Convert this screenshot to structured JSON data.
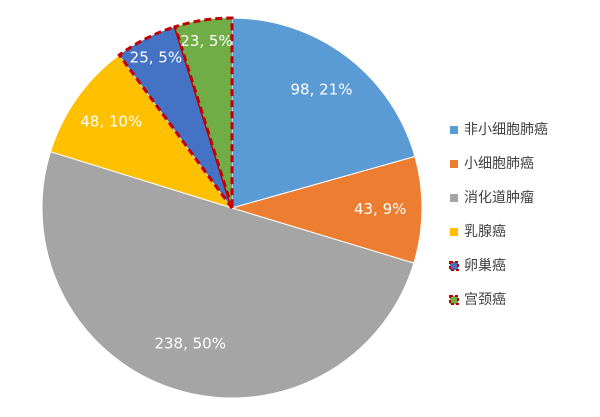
{
  "chart_data": {
    "type": "pie",
    "categories": [
      "非小细胞肺癌",
      "小细胞肺癌",
      "消化道肿瘤",
      "乳腺癌",
      "卵巢癌",
      "宫颈癌"
    ],
    "values": [
      98,
      43,
      238,
      48,
      25,
      23
    ],
    "value_labels": [
      "98, 21%",
      "43, 9%",
      "238, 50%",
      "48, 10%",
      "25, 5%",
      "23, 5%"
    ],
    "colors": [
      "#5b9bd5",
      "#ed7d31",
      "#a5a5a5",
      "#ffc000",
      "#4472c4",
      "#70ad47"
    ],
    "dashed_border": [
      false,
      false,
      false,
      false,
      true,
      true
    ],
    "border_color": "#c00000",
    "legend": "right"
  }
}
